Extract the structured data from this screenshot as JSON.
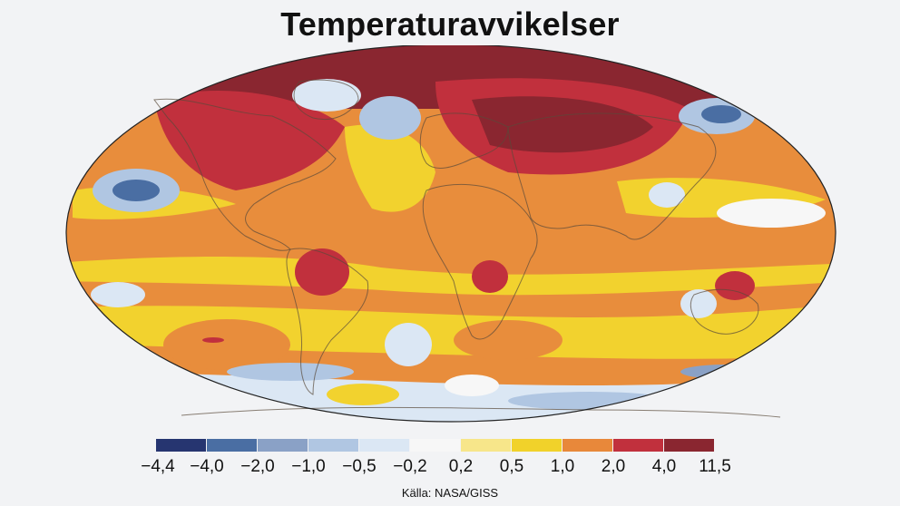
{
  "title": "Temperaturavvikelser",
  "source": "Källa: NASA/GISS",
  "legend": {
    "colors": [
      "#263570",
      "#4a6ea3",
      "#8aa1c6",
      "#b0c6e2",
      "#dbe7f4",
      "#f7f7f7",
      "#f7e68a",
      "#f1d22a",
      "#e8883a",
      "#c1303d",
      "#8a2630"
    ],
    "ticks": [
      "−4,4",
      "−4,0",
      "−2,0",
      "−1,0",
      "−0,5",
      "−0,2",
      "0,2",
      "0,5",
      "1,0",
      "2,0",
      "4,0",
      "11,5"
    ]
  },
  "map_colors": {
    "ocean_base": "#e88d3c",
    "warm_mid": "#f2d22e",
    "warm_light": "#f7e78a",
    "neutral": "#f7f7f7",
    "cool_light": "#dbe7f4",
    "cool": "#b0c6e2",
    "cool_mid": "#8aa1c6",
    "cool_dark": "#4a6ea3",
    "cold": "#263570",
    "hot": "#c1303d",
    "hottest": "#8a2630",
    "coast": "#5a4a3a"
  }
}
